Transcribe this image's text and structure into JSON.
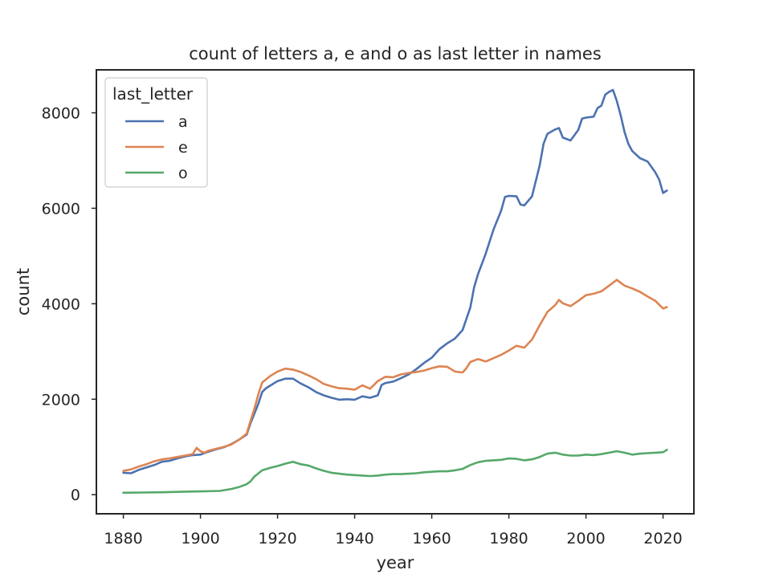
{
  "chart_data": {
    "type": "line",
    "title": "count of letters a, e and o as last letter in names",
    "xlabel": "year",
    "ylabel": "count",
    "xlim": [
      1873,
      2028
    ],
    "ylim": [
      -400,
      8900
    ],
    "xticks": [
      1880,
      1900,
      1920,
      1940,
      1960,
      1980,
      2000,
      2020
    ],
    "yticks": [
      0,
      2000,
      4000,
      6000,
      8000
    ],
    "grid": false,
    "legend": {
      "title": "last_letter",
      "position": "top-left"
    },
    "series": [
      {
        "name": "a",
        "color": "#4c72b0",
        "points": [
          [
            1880,
            460
          ],
          [
            1882,
            450
          ],
          [
            1884,
            520
          ],
          [
            1886,
            570
          ],
          [
            1888,
            620
          ],
          [
            1890,
            690
          ],
          [
            1892,
            710
          ],
          [
            1894,
            760
          ],
          [
            1896,
            800
          ],
          [
            1898,
            830
          ],
          [
            1900,
            840
          ],
          [
            1902,
            900
          ],
          [
            1904,
            950
          ],
          [
            1906,
            990
          ],
          [
            1908,
            1060
          ],
          [
            1910,
            1150
          ],
          [
            1912,
            1260
          ],
          [
            1913,
            1500
          ],
          [
            1914,
            1700
          ],
          [
            1915,
            1900
          ],
          [
            1916,
            2150
          ],
          [
            1917,
            2230
          ],
          [
            1918,
            2280
          ],
          [
            1920,
            2380
          ],
          [
            1922,
            2430
          ],
          [
            1924,
            2430
          ],
          [
            1926,
            2330
          ],
          [
            1928,
            2250
          ],
          [
            1930,
            2150
          ],
          [
            1932,
            2080
          ],
          [
            1934,
            2030
          ],
          [
            1936,
            1990
          ],
          [
            1938,
            2000
          ],
          [
            1940,
            1990
          ],
          [
            1942,
            2060
          ],
          [
            1944,
            2030
          ],
          [
            1946,
            2080
          ],
          [
            1947,
            2300
          ],
          [
            1948,
            2340
          ],
          [
            1950,
            2370
          ],
          [
            1952,
            2440
          ],
          [
            1954,
            2520
          ],
          [
            1956,
            2630
          ],
          [
            1958,
            2760
          ],
          [
            1960,
            2870
          ],
          [
            1962,
            3050
          ],
          [
            1964,
            3170
          ],
          [
            1966,
            3270
          ],
          [
            1968,
            3450
          ],
          [
            1970,
            3920
          ],
          [
            1971,
            4350
          ],
          [
            1972,
            4620
          ],
          [
            1974,
            5050
          ],
          [
            1976,
            5550
          ],
          [
            1978,
            5950
          ],
          [
            1979,
            6240
          ],
          [
            1980,
            6260
          ],
          [
            1982,
            6250
          ],
          [
            1983,
            6080
          ],
          [
            1984,
            6060
          ],
          [
            1986,
            6250
          ],
          [
            1988,
            6900
          ],
          [
            1989,
            7350
          ],
          [
            1990,
            7560
          ],
          [
            1992,
            7650
          ],
          [
            1993,
            7680
          ],
          [
            1994,
            7480
          ],
          [
            1996,
            7420
          ],
          [
            1998,
            7640
          ],
          [
            1999,
            7880
          ],
          [
            2000,
            7900
          ],
          [
            2002,
            7920
          ],
          [
            2003,
            8100
          ],
          [
            2004,
            8150
          ],
          [
            2005,
            8380
          ],
          [
            2006,
            8440
          ],
          [
            2007,
            8480
          ],
          [
            2008,
            8250
          ],
          [
            2009,
            7950
          ],
          [
            2010,
            7600
          ],
          [
            2011,
            7350
          ],
          [
            2012,
            7200
          ],
          [
            2014,
            7050
          ],
          [
            2016,
            6980
          ],
          [
            2018,
            6750
          ],
          [
            2019,
            6600
          ],
          [
            2020,
            6320
          ],
          [
            2021,
            6370
          ]
        ]
      },
      {
        "name": "e",
        "color": "#dd8452",
        "points": [
          [
            1880,
            500
          ],
          [
            1882,
            530
          ],
          [
            1884,
            590
          ],
          [
            1886,
            640
          ],
          [
            1888,
            700
          ],
          [
            1890,
            740
          ],
          [
            1892,
            760
          ],
          [
            1894,
            790
          ],
          [
            1896,
            820
          ],
          [
            1898,
            850
          ],
          [
            1899,
            980
          ],
          [
            1900,
            910
          ],
          [
            1901,
            880
          ],
          [
            1902,
            920
          ],
          [
            1904,
            960
          ],
          [
            1906,
            1000
          ],
          [
            1908,
            1050
          ],
          [
            1910,
            1150
          ],
          [
            1912,
            1280
          ],
          [
            1913,
            1550
          ],
          [
            1914,
            1800
          ],
          [
            1915,
            2100
          ],
          [
            1916,
            2350
          ],
          [
            1918,
            2480
          ],
          [
            1920,
            2580
          ],
          [
            1922,
            2640
          ],
          [
            1924,
            2620
          ],
          [
            1926,
            2570
          ],
          [
            1928,
            2500
          ],
          [
            1930,
            2420
          ],
          [
            1932,
            2320
          ],
          [
            1934,
            2270
          ],
          [
            1936,
            2230
          ],
          [
            1938,
            2220
          ],
          [
            1940,
            2200
          ],
          [
            1942,
            2290
          ],
          [
            1944,
            2220
          ],
          [
            1946,
            2380
          ],
          [
            1948,
            2470
          ],
          [
            1950,
            2460
          ],
          [
            1952,
            2520
          ],
          [
            1954,
            2550
          ],
          [
            1956,
            2570
          ],
          [
            1958,
            2600
          ],
          [
            1960,
            2650
          ],
          [
            1962,
            2690
          ],
          [
            1964,
            2680
          ],
          [
            1966,
            2580
          ],
          [
            1968,
            2560
          ],
          [
            1969,
            2650
          ],
          [
            1970,
            2780
          ],
          [
            1972,
            2840
          ],
          [
            1974,
            2790
          ],
          [
            1976,
            2860
          ],
          [
            1978,
            2930
          ],
          [
            1980,
            3020
          ],
          [
            1982,
            3120
          ],
          [
            1984,
            3080
          ],
          [
            1986,
            3250
          ],
          [
            1988,
            3550
          ],
          [
            1990,
            3830
          ],
          [
            1992,
            3970
          ],
          [
            1993,
            4080
          ],
          [
            1994,
            4010
          ],
          [
            1996,
            3950
          ],
          [
            1998,
            4060
          ],
          [
            2000,
            4180
          ],
          [
            2002,
            4210
          ],
          [
            2004,
            4260
          ],
          [
            2006,
            4380
          ],
          [
            2008,
            4500
          ],
          [
            2010,
            4380
          ],
          [
            2012,
            4320
          ],
          [
            2014,
            4250
          ],
          [
            2016,
            4150
          ],
          [
            2018,
            4060
          ],
          [
            2020,
            3900
          ],
          [
            2021,
            3930
          ]
        ]
      },
      {
        "name": "o",
        "color": "#55a868",
        "points": [
          [
            1880,
            40
          ],
          [
            1885,
            45
          ],
          [
            1890,
            50
          ],
          [
            1895,
            60
          ],
          [
            1900,
            70
          ],
          [
            1905,
            80
          ],
          [
            1908,
            120
          ],
          [
            1910,
            160
          ],
          [
            1912,
            220
          ],
          [
            1913,
            280
          ],
          [
            1914,
            380
          ],
          [
            1916,
            510
          ],
          [
            1918,
            560
          ],
          [
            1920,
            600
          ],
          [
            1922,
            650
          ],
          [
            1924,
            690
          ],
          [
            1926,
            640
          ],
          [
            1928,
            610
          ],
          [
            1930,
            550
          ],
          [
            1932,
            500
          ],
          [
            1934,
            460
          ],
          [
            1936,
            440
          ],
          [
            1938,
            420
          ],
          [
            1940,
            410
          ],
          [
            1942,
            400
          ],
          [
            1944,
            390
          ],
          [
            1946,
            400
          ],
          [
            1948,
            420
          ],
          [
            1950,
            430
          ],
          [
            1952,
            430
          ],
          [
            1954,
            440
          ],
          [
            1956,
            450
          ],
          [
            1958,
            470
          ],
          [
            1960,
            480
          ],
          [
            1962,
            490
          ],
          [
            1964,
            490
          ],
          [
            1966,
            510
          ],
          [
            1968,
            540
          ],
          [
            1970,
            620
          ],
          [
            1972,
            680
          ],
          [
            1974,
            710
          ],
          [
            1976,
            720
          ],
          [
            1978,
            730
          ],
          [
            1980,
            760
          ],
          [
            1982,
            750
          ],
          [
            1984,
            720
          ],
          [
            1986,
            740
          ],
          [
            1988,
            790
          ],
          [
            1990,
            860
          ],
          [
            1992,
            880
          ],
          [
            1994,
            840
          ],
          [
            1996,
            820
          ],
          [
            1998,
            820
          ],
          [
            2000,
            840
          ],
          [
            2002,
            830
          ],
          [
            2004,
            850
          ],
          [
            2006,
            880
          ],
          [
            2008,
            910
          ],
          [
            2010,
            880
          ],
          [
            2012,
            840
          ],
          [
            2014,
            860
          ],
          [
            2016,
            870
          ],
          [
            2018,
            880
          ],
          [
            2020,
            890
          ],
          [
            2021,
            940
          ]
        ]
      }
    ]
  }
}
